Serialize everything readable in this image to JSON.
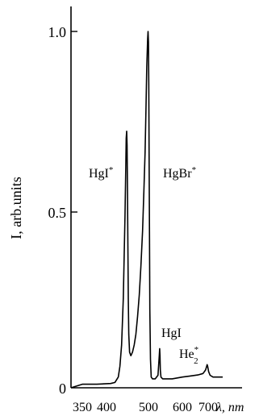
{
  "chart_data": {
    "type": "line",
    "title": "",
    "xlabel": "λ, nm",
    "ylabel": "I, arb.units",
    "xlim": [
      320,
      760
    ],
    "ylim": [
      0,
      1.05
    ],
    "x_ticks": [
      350,
      400,
      500,
      600,
      700
    ],
    "x_tick_labels": [
      "350",
      "400",
      "500",
      "600",
      "700"
    ],
    "y_ticks": [
      0,
      0.5,
      1.0
    ],
    "y_tick_labels": [
      "0",
      "0.5",
      "1.0"
    ],
    "grid": false,
    "series": [
      {
        "x": [
          320,
          350,
          380,
          410,
          420,
          428,
          432,
          436,
          440,
          444,
          446,
          447,
          448,
          449,
          450,
          451,
          452,
          453,
          455,
          458,
          462,
          466,
          470,
          474,
          478,
          482,
          486,
          489,
          492,
          494,
          496,
          498,
          499,
          500,
          501,
          502,
          503,
          504,
          506,
          508,
          512,
          520,
          528,
          532,
          533,
          534,
          535,
          537,
          542,
          552,
          570,
          600,
          630,
          660,
          680,
          690,
          694,
          696,
          698,
          702,
          708,
          720,
          760
        ],
        "y": [
          0.0,
          0.01,
          0.01,
          0.012,
          0.015,
          0.03,
          0.06,
          0.12,
          0.25,
          0.48,
          0.62,
          0.7,
          0.72,
          0.68,
          0.55,
          0.4,
          0.25,
          0.15,
          0.1,
          0.09,
          0.1,
          0.12,
          0.15,
          0.2,
          0.26,
          0.34,
          0.44,
          0.55,
          0.66,
          0.78,
          0.9,
          0.98,
          1.0,
          0.97,
          0.85,
          0.65,
          0.42,
          0.22,
          0.08,
          0.03,
          0.025,
          0.025,
          0.035,
          0.09,
          0.11,
          0.09,
          0.05,
          0.03,
          0.025,
          0.025,
          0.025,
          0.03,
          0.033,
          0.036,
          0.04,
          0.05,
          0.06,
          0.065,
          0.06,
          0.045,
          0.035,
          0.03,
          0.03
        ]
      }
    ],
    "annotations": [
      {
        "x": 450,
        "y": 0.6,
        "label": "HgI*"
      },
      {
        "x": 505,
        "y": 0.6,
        "label": "HgBr*"
      },
      {
        "x": 522,
        "y": 0.19,
        "label": "HgI"
      },
      {
        "x": 590,
        "y": 0.06,
        "label": "He"
      }
    ]
  },
  "labels": {
    "y_label": "I, arb.units",
    "x_unit": "λ, nm",
    "hgi_star": "HgI",
    "hgi_star_sup": "*",
    "hgbr_star": "HgBr",
    "hgbr_star_sup": "*",
    "hgi": "HgI",
    "he_base": "He",
    "he_sup": "*",
    "he_sub": "2"
  }
}
